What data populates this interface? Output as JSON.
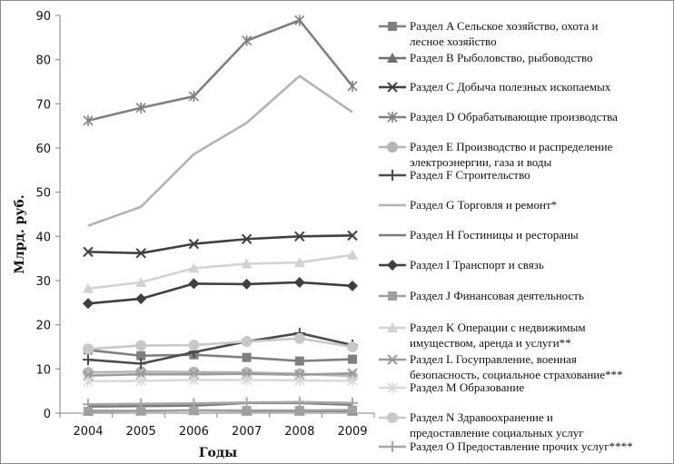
{
  "chart_data": {
    "type": "line",
    "title": "",
    "xlabel": "Годы",
    "ylabel": "Млрд. руб.",
    "x": [
      "2004",
      "2005",
      "2006",
      "2007",
      "2008",
      "2009"
    ],
    "ylim": [
      0,
      90
    ],
    "yticks": [
      0,
      10,
      20,
      30,
      40,
      50,
      60,
      70,
      80,
      90
    ],
    "grid": false,
    "legend_position": "right",
    "series": [
      {
        "name": "Раздел A Сельское хозяйство, охота и лесное хозяйство",
        "name_lines": [
          "Раздел A Сельское хозяйство, охота и",
          "лесное хозяйство"
        ],
        "marker": "square",
        "color": "#7f7f7f",
        "values": [
          14.3,
          13.0,
          13.2,
          12.6,
          11.8,
          12.2
        ]
      },
      {
        "name": "Раздел B Рыболовство, рыбоводство",
        "name_lines": [
          "Раздел B Рыболовство, рыбоводство"
        ],
        "marker": "triangle",
        "color": "#6e6e6e",
        "values": [
          0.5,
          0.5,
          0.6,
          0.5,
          0.5,
          0.5
        ]
      },
      {
        "name": "Раздел C Добыча полезных ископаемых",
        "name_lines": [
          "Раздел C Добыча полезных ископаемых"
        ],
        "marker": "x",
        "color": "#404040",
        "values": [
          36.5,
          36.2,
          38.3,
          39.4,
          40.0,
          40.2
        ]
      },
      {
        "name": "Раздел D Обрабатывающие производства",
        "name_lines": [
          "Раздел D Обрабатывающие производства"
        ],
        "marker": "star",
        "color": "#808080",
        "values": [
          66.2,
          69.1,
          71.7,
          84.3,
          88.9,
          74.0
        ]
      },
      {
        "name": "Раздел E Производство и распределение электроэнергии, газа и воды",
        "name_lines": [
          "Раздел E Производство и распределение",
          "электроэнергии, газа и воды"
        ],
        "marker": "circle",
        "color": "#b5b5b5",
        "values": [
          9.2,
          9.4,
          9.3,
          9.2,
          8.9,
          8.4
        ]
      },
      {
        "name": "Раздел F Строительство",
        "name_lines": [
          "Раздел F Строительство"
        ],
        "marker": "plus",
        "color": "#4a4a4a",
        "values": [
          12.1,
          11.2,
          13.8,
          16.2,
          18.1,
          15.4
        ]
      },
      {
        "name": "Раздел G Торговля и ремонт*",
        "name_lines": [
          "Раздел G Торговля и ремонт*"
        ],
        "marker": "none",
        "color": "#b3b3b3",
        "values": [
          42.4,
          46.7,
          58.6,
          65.7,
          76.3,
          68.1
        ]
      },
      {
        "name": "Раздел H Гостиницы и рестораны",
        "name_lines": [
          "Раздел H Гостиницы и рестораны"
        ],
        "marker": "none",
        "color": "#7a7a7a",
        "values": [
          1.5,
          1.6,
          1.7,
          2.3,
          2.3,
          1.9
        ]
      },
      {
        "name": "Раздел I Транспорт и связь",
        "name_lines": [
          "Раздел I Транспорт и связь"
        ],
        "marker": "diamond",
        "color": "#3f3f3f",
        "values": [
          24.8,
          25.9,
          29.3,
          29.2,
          29.6,
          28.8
        ]
      },
      {
        "name": "Раздел J Финансовая деятельность",
        "name_lines": [
          "Раздел J Финансовая деятельность"
        ],
        "marker": "square",
        "color": "#a0a0a0",
        "values": [
          0.4,
          0.5,
          0.6,
          0.6,
          0.6,
          0.7
        ]
      },
      {
        "name": "Раздел K Операции с недвижимым имуществом, аренда и услуги**",
        "name_lines": [
          "Раздел K Операции с недвижимым",
          "имуществом, аренда и услуги**"
        ],
        "marker": "triangle",
        "color": "#d2d2d2",
        "values": [
          28.2,
          29.6,
          32.8,
          33.8,
          34.1,
          35.8
        ]
      },
      {
        "name": "Раздел L Госуправление, военная безопасность, социальное страхование***",
        "name_lines": [
          "Раздел L Госуправление, военная",
          "безопасность, социальное страхование***"
        ],
        "marker": "x",
        "color": "#9a9a9a",
        "values": [
          8.5,
          8.8,
          8.8,
          8.9,
          8.7,
          9.0
        ]
      },
      {
        "name": "Раздел M Образование",
        "name_lines": [
          "Раздел M Образование"
        ],
        "marker": "star",
        "color": "#d9d9d9",
        "values": [
          7.2,
          7.3,
          7.5,
          7.5,
          7.4,
          7.3
        ]
      },
      {
        "name": "Раздел N Здравоохранение и предоставление социальных услуг",
        "name_lines": [
          "Раздел N Здравоохранение и",
          "предоставление социальных услуг"
        ],
        "marker": "circle",
        "color": "#c8c8c8",
        "values": [
          14.5,
          15.3,
          15.4,
          16.2,
          16.9,
          15.0
        ]
      },
      {
        "name": "Раздел O Предоставление прочих услуг****",
        "name_lines": [
          "Раздел O Предоставление прочих услуг****"
        ],
        "marker": "plus",
        "color": "#a6a6a6",
        "values": [
          2.0,
          2.1,
          2.2,
          2.4,
          2.5,
          2.3
        ]
      }
    ]
  }
}
